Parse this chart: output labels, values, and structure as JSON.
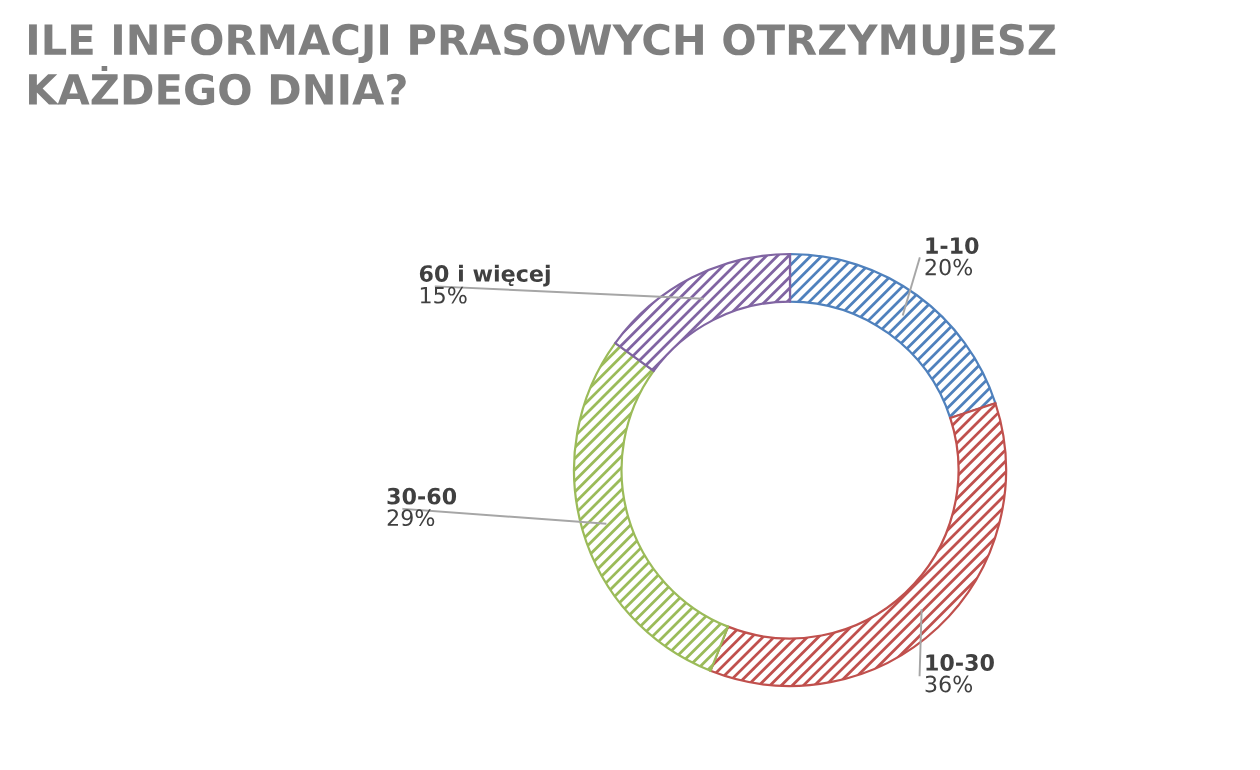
{
  "chart_data": {
    "type": "donut",
    "title": "ILE INFORMACJI PRASOWYCH OTRZYMUJESZ\nKAŻDEGO DNIA?",
    "categories": [
      "1-10",
      "10-30",
      "30-60",
      "60 i więcej"
    ],
    "values": [
      20,
      36,
      29,
      15
    ],
    "value_labels": [
      "20%",
      "36%",
      "29%",
      "15%"
    ],
    "colors": [
      "#4f81bd",
      "#c0504d",
      "#9bbb59",
      "#8064a2"
    ],
    "legend": false
  }
}
